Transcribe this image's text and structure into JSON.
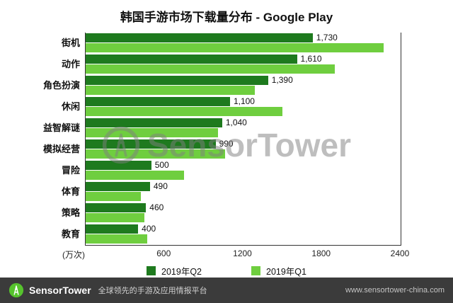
{
  "title": "韩国手游市场下载量分布 - Google Play",
  "colors": {
    "q2_dark_green": "#1e7a1e",
    "q1_light_green": "#6fce3f",
    "footer_bg": "#3b3b3b",
    "logo_green": "#56c32d",
    "watermark_grey": "#7f7f7f"
  },
  "chart_data": {
    "type": "bar",
    "orientation": "horizontal",
    "title": "韩国手游市场下载量分布 - Google Play",
    "xlabel": "(万次)",
    "xlim": [
      0,
      2400
    ],
    "xticks": [
      600,
      1200,
      1800,
      2400
    ],
    "grid": false,
    "legend_position": "bottom",
    "categories": [
      "街机",
      "动作",
      "角色扮演",
      "休闲",
      "益智解谜",
      "模拟经营",
      "冒险",
      "体育",
      "策略",
      "教育"
    ],
    "series": [
      {
        "name": "2019年Q2",
        "color": "#1e7a1e",
        "values": [
          1730,
          1610,
          1390,
          1100,
          1040,
          990,
          500,
          490,
          460,
          400
        ],
        "labels": [
          "1,730",
          "1,610",
          "1,390",
          "1,100",
          "1,040",
          "990",
          "500",
          "490",
          "460",
          "400"
        ]
      },
      {
        "name": "2019年Q1",
        "color": "#6fce3f",
        "values": [
          2270,
          1900,
          1290,
          1500,
          1010,
          1060,
          750,
          420,
          450,
          470
        ]
      }
    ]
  },
  "watermark": {
    "text": "SensorTower"
  },
  "footer": {
    "brand": "SensorTower",
    "tagline": "全球领先的手游及应用情报平台",
    "url": "www.sensortower-china.com"
  }
}
